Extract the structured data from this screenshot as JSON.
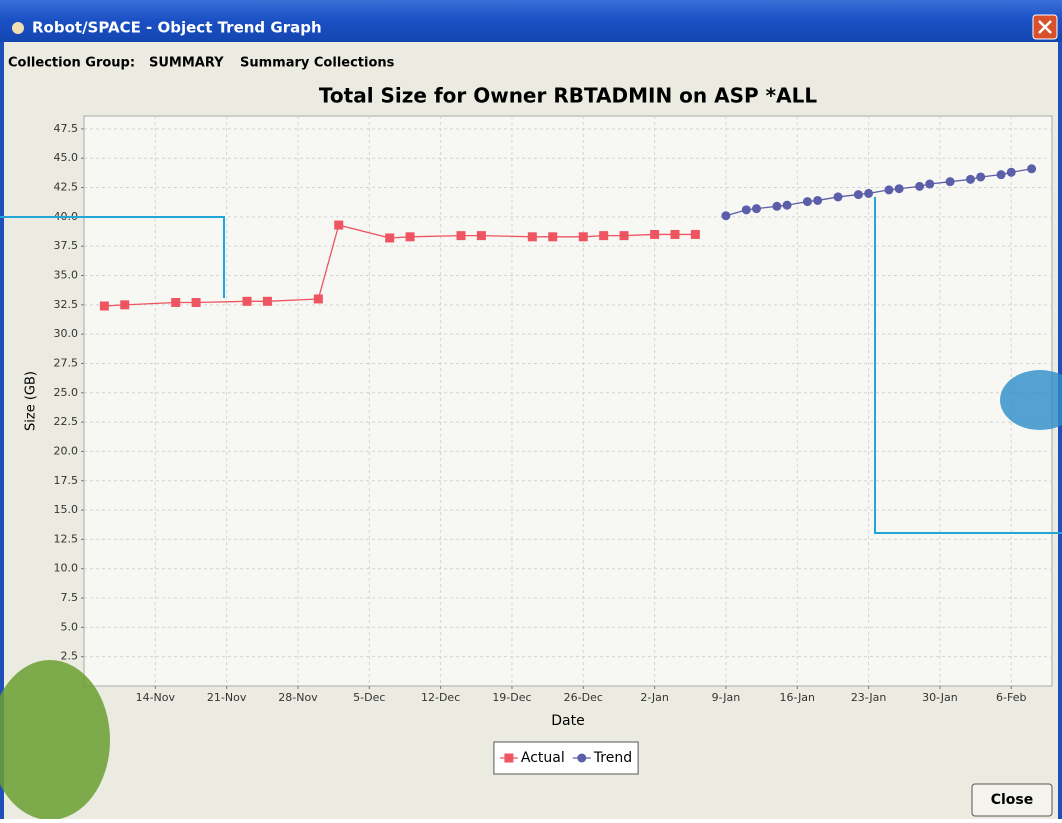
{
  "window": {
    "title": "Robot/SPACE - Object Trend Graph"
  },
  "header": {
    "label": "Collection Group:",
    "group": "SUMMARY",
    "description": "Summary Collections"
  },
  "chart_data": {
    "type": "line",
    "title": "Total Size for Owner RBTADMIN on ASP *ALL",
    "x_label": "Date",
    "y_label": "Size (GB)",
    "xlim": [
      "7-Nov",
      "10-Feb"
    ],
    "xticks": [
      "14-Nov",
      "21-Nov",
      "28-Nov",
      "5-Dec",
      "12-Dec",
      "19-Dec",
      "26-Dec",
      "2-Jan",
      "9-Jan",
      "16-Jan",
      "23-Jan",
      "30-Jan",
      "6-Feb"
    ],
    "ylim": [
      0,
      48.6
    ],
    "yticks": [
      2.5,
      {
        "value": 5,
        "label": "5.0"
      },
      7.5,
      {
        "value": 10,
        "label": "10.0"
      },
      12.5,
      {
        "value": 15,
        "label": "15.0"
      },
      17.5,
      {
        "value": 20,
        "label": "20.0"
      },
      22.5,
      {
        "value": 25,
        "label": "25.0"
      },
      27.5,
      {
        "value": 30,
        "label": "30.0"
      },
      32.5,
      {
        "value": 35,
        "label": "35.0"
      },
      37.5,
      {
        "value": 40,
        "label": "40.0"
      },
      42.5,
      {
        "value": 45,
        "label": "45.0"
      },
      47.5
    ],
    "grid": true,
    "legend": "bottom",
    "series": [
      {
        "name": "Actual",
        "color": "#ee5560",
        "marker": "square",
        "x": [
          "9-Nov",
          "11-Nov",
          "16-Nov",
          "18-Nov",
          "23-Nov",
          "25-Nov",
          "30-Nov",
          "2-Dec",
          "7-Dec",
          "9-Dec",
          "14-Dec",
          "16-Dec",
          "21-Dec",
          "23-Dec",
          "26-Dec",
          "28-Dec",
          "30-Dec",
          "2-Jan",
          "4-Jan",
          "6-Jan"
        ],
        "values": [
          32.4,
          32.5,
          32.7,
          32.7,
          32.8,
          32.8,
          33.0,
          39.3,
          38.2,
          38.3,
          38.4,
          38.4,
          38.3,
          38.3,
          38.3,
          38.4,
          38.4,
          38.5,
          38.5,
          38.5
        ]
      },
      {
        "name": "Trend",
        "color": "#5b5ea8",
        "marker": "circle",
        "x": [
          "9-Jan",
          "11-Jan",
          "12-Jan",
          "14-Jan",
          "15-Jan",
          "17-Jan",
          "18-Jan",
          "20-Jan",
          "22-Jan",
          "23-Jan",
          "25-Jan",
          "26-Jan",
          "28-Jan",
          "29-Jan",
          "31-Jan",
          "2-Feb",
          "3-Feb",
          "5-Feb",
          "6-Feb",
          "8-Feb"
        ],
        "values": [
          40.1,
          40.6,
          40.7,
          40.9,
          41.0,
          41.3,
          41.4,
          41.7,
          41.9,
          42.0,
          42.3,
          42.4,
          42.6,
          42.8,
          43.0,
          43.2,
          43.4,
          43.6,
          43.8,
          44.1
        ]
      }
    ]
  },
  "buttons": {
    "close": "Close"
  }
}
